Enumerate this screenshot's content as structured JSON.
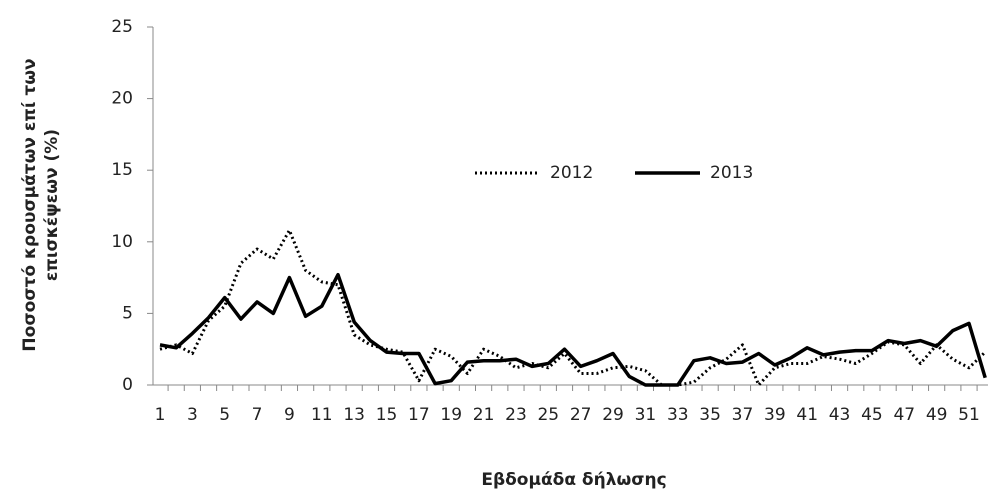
{
  "chart_data": {
    "type": "line",
    "x_label": "Εβδομάδα δήλωσης",
    "y_label": [
      "Ποσοστό κρουσμάτων επί των",
      "επισκέψεων (%)"
    ],
    "categories": [
      1,
      null,
      3,
      null,
      5,
      null,
      7,
      null,
      9,
      null,
      11,
      null,
      13,
      null,
      15,
      null,
      17,
      null,
      19,
      null,
      21,
      null,
      23,
      null,
      25,
      null,
      27,
      null,
      29,
      null,
      31,
      null,
      33,
      null,
      35,
      null,
      37,
      null,
      39,
      null,
      41,
      null,
      43,
      null,
      45,
      null,
      47,
      null,
      49,
      null,
      51,
      null
    ],
    "series": [
      {
        "name": "2012",
        "color": "#000000",
        "style": "dotted",
        "values": [
          2.5,
          2.8,
          2.2,
          4.5,
          5.5,
          8.5,
          9.5,
          8.8,
          10.8,
          8.0,
          7.2,
          7.0,
          3.5,
          2.8,
          2.5,
          2.3,
          0.3,
          2.5,
          2.0,
          0.8,
          2.5,
          2.0,
          1.2,
          1.5,
          1.2,
          2.2,
          0.8,
          0.8,
          1.2,
          1.3,
          1.0,
          0,
          0,
          0.2,
          1.2,
          1.8,
          2.8,
          0,
          1.2,
          1.5,
          1.5,
          2.0,
          1.8,
          1.5,
          2.2,
          3.0,
          2.8,
          1.5,
          2.8,
          1.8,
          1.2,
          2.3
        ]
      },
      {
        "name": "2013",
        "color": "#000000",
        "style": "solid",
        "values": [
          2.8,
          2.6,
          3.6,
          4.7,
          6.1,
          4.6,
          5.8,
          5.0,
          7.5,
          4.8,
          5.5,
          7.7,
          4.4,
          3.1,
          2.3,
          2.2,
          2.2,
          0.1,
          0.3,
          1.6,
          1.7,
          1.7,
          1.8,
          1.3,
          1.5,
          2.5,
          1.3,
          1.7,
          2.2,
          0.6,
          0,
          0,
          0,
          1.7,
          1.9,
          1.5,
          1.6,
          2.2,
          1.4,
          1.9,
          2.6,
          2.1,
          2.3,
          2.4,
          2.4,
          3.1,
          2.9,
          3.1,
          2.7,
          3.8,
          4.3,
          0.5
        ]
      }
    ],
    "ylim": [
      0,
      25
    ],
    "yticks": [
      0,
      5,
      10,
      15,
      20,
      25
    ],
    "grid": false,
    "legend": "center"
  }
}
